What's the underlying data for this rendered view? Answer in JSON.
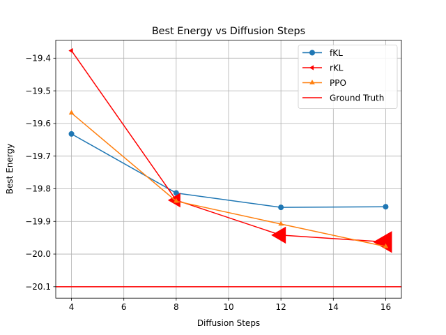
{
  "chart_data": {
    "type": "line",
    "title": "Best Energy vs Diffusion Steps",
    "xlabel": "Diffusion Steps",
    "ylabel": "Best Energy",
    "xlim": [
      3.4,
      16.6
    ],
    "ylim": [
      -20.135,
      -19.345
    ],
    "xticks": [
      4,
      6,
      8,
      10,
      12,
      14,
      16
    ],
    "yticks": [
      -19.4,
      -19.5,
      -19.6,
      -19.7,
      -19.8,
      -19.9,
      -20.0,
      -20.1
    ],
    "ytick_labels": [
      "−19.4",
      "−19.5",
      "−19.6",
      "−19.7",
      "−19.8",
      "−19.9",
      "−20.0",
      "−20.1"
    ],
    "grid": true,
    "legend_position": "upper right",
    "series": [
      {
        "name": "fKL",
        "color": "#1f77b4",
        "marker": "circle",
        "x": [
          4,
          8,
          12,
          16
        ],
        "values": [
          -19.632,
          -19.813,
          -19.857,
          -19.855
        ]
      },
      {
        "name": "rKL",
        "color": "#ff0000",
        "marker": "triangle-left",
        "x": [
          4,
          8,
          12,
          16
        ],
        "values": [
          -19.377,
          -19.835,
          -19.942,
          -19.963
        ]
      },
      {
        "name": "PPO",
        "color": "#ff7f0e",
        "marker": "triangle-up",
        "x": [
          4,
          8,
          12,
          16
        ],
        "values": [
          -19.568,
          -19.838,
          -19.908,
          -19.977
        ]
      }
    ],
    "hlines": [
      {
        "name": "Ground Truth",
        "color": "#ff0000",
        "y": -20.1
      }
    ]
  }
}
